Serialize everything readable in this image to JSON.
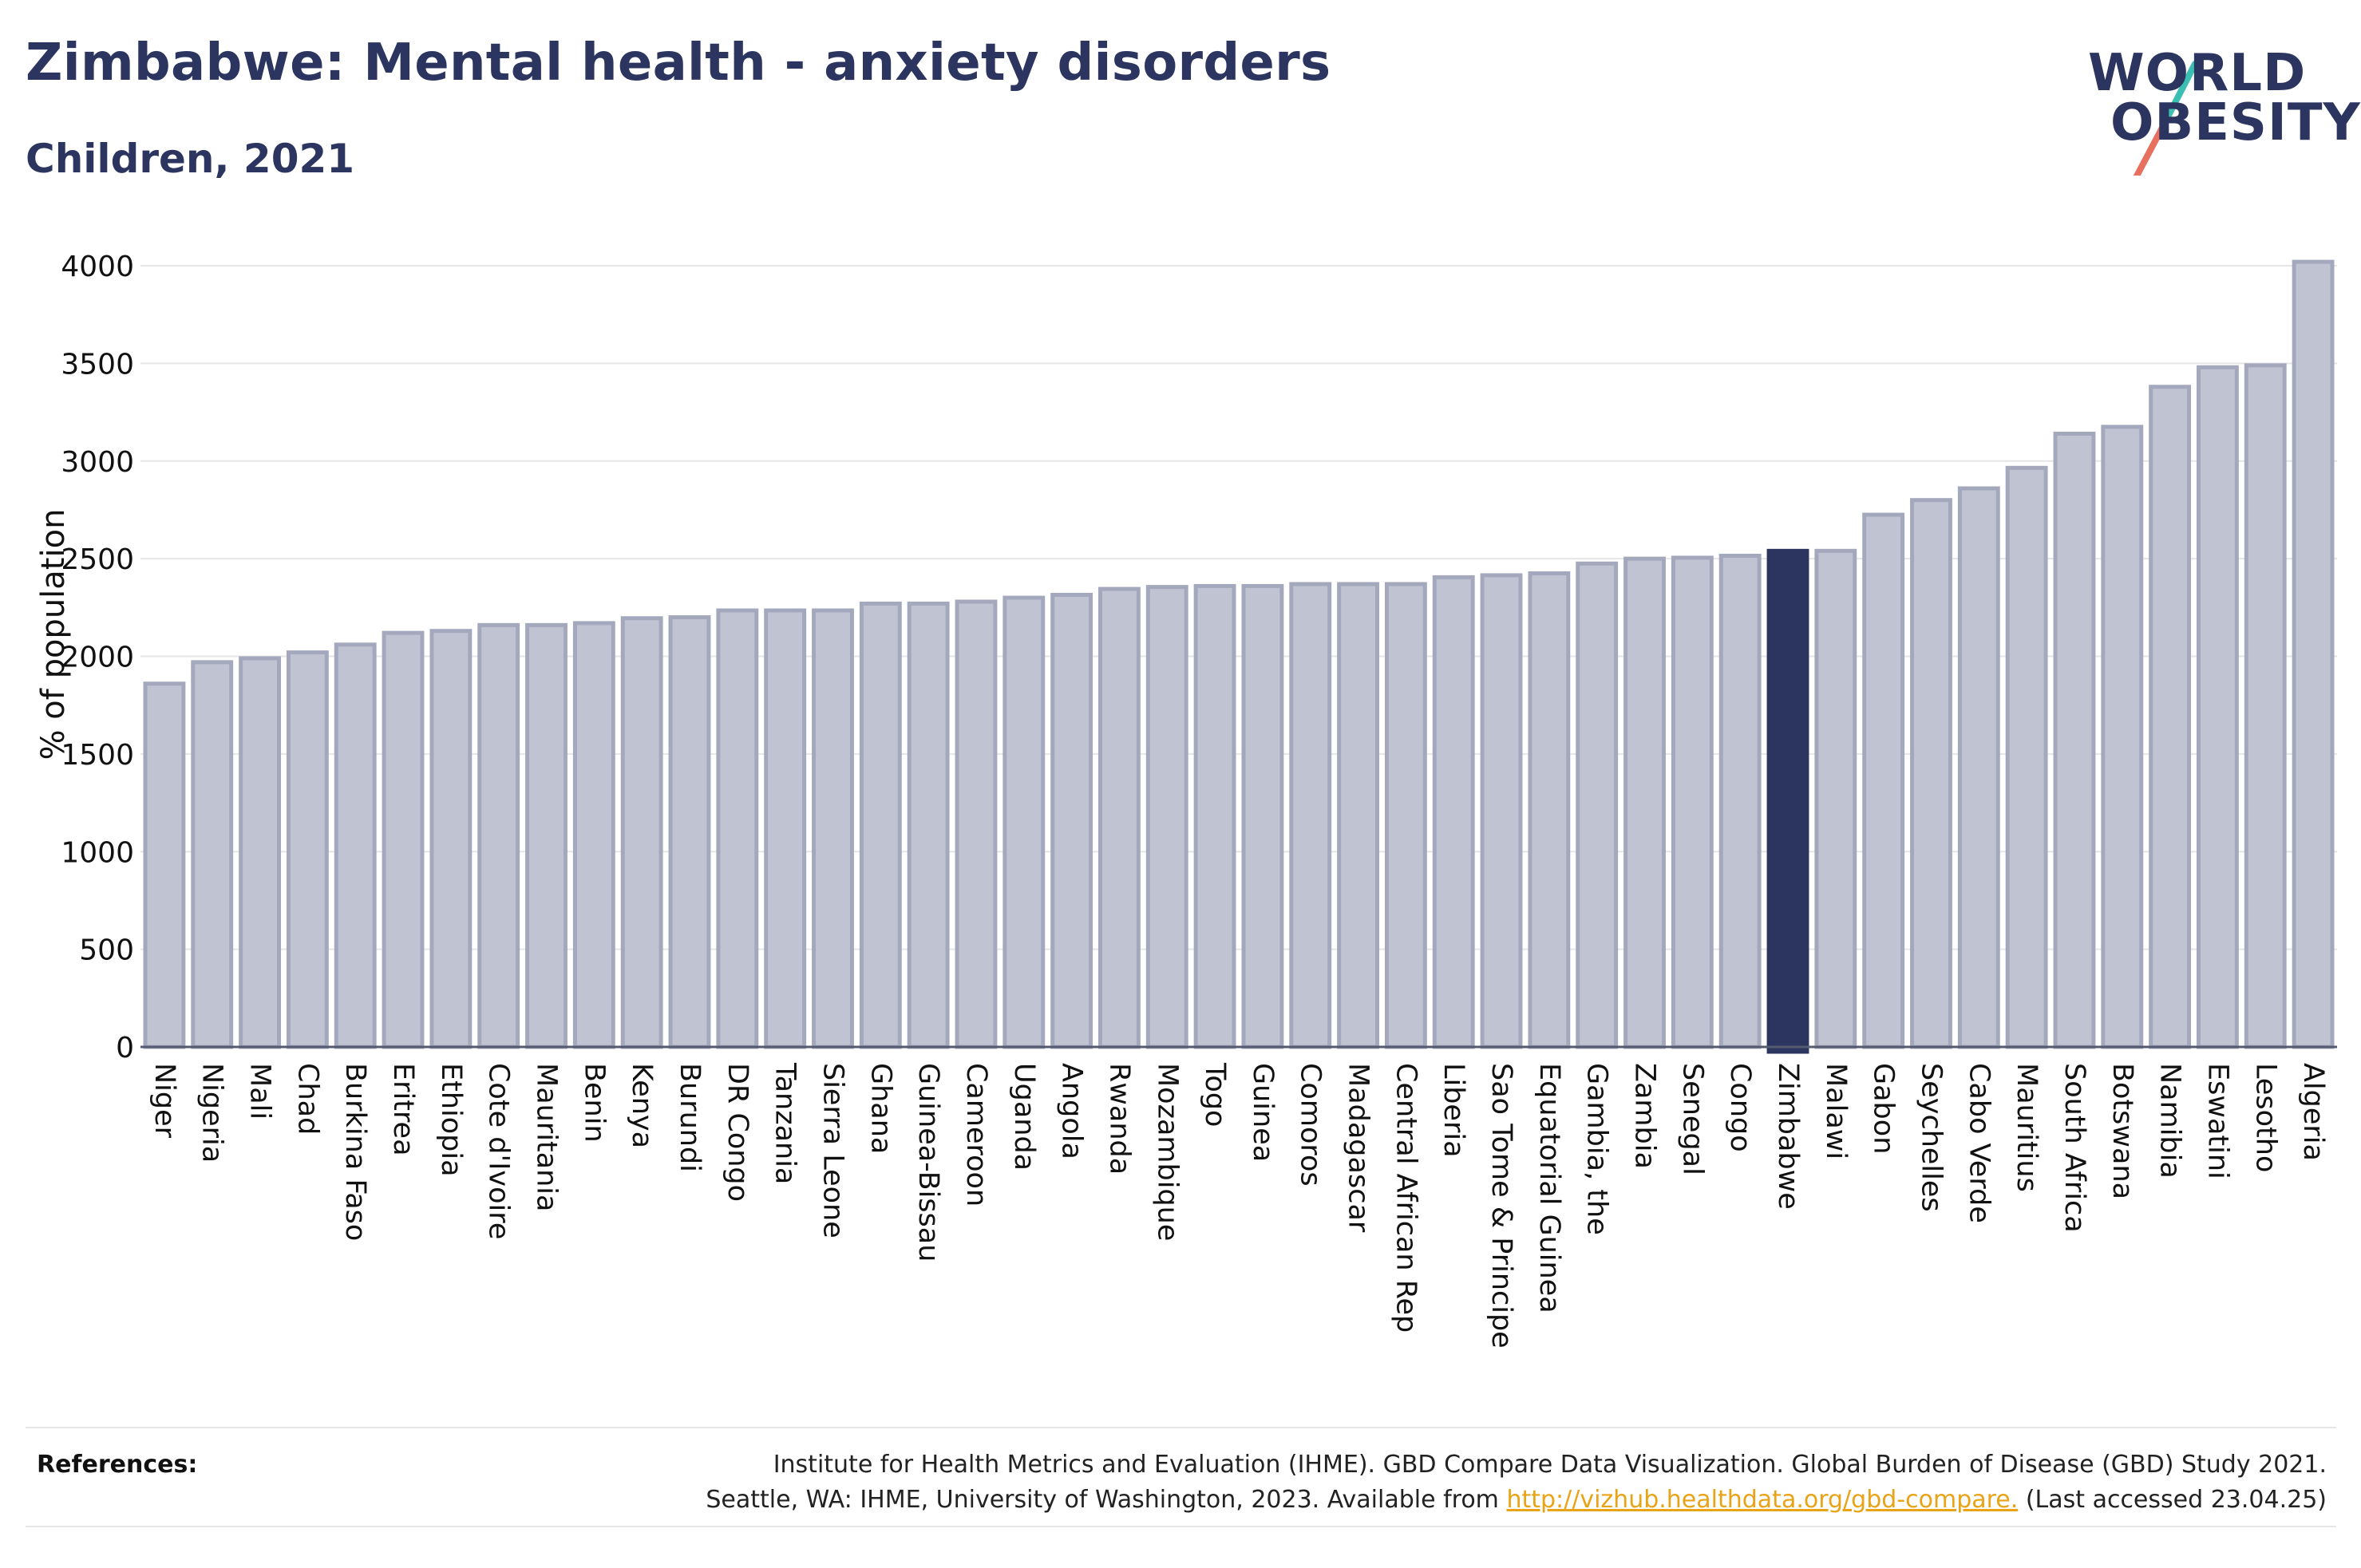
{
  "header": {
    "title": "Zimbabwe: Mental health - anxiety disorders",
    "subtitle": "Children, 2021"
  },
  "logo": {
    "line1": "WORLD",
    "line2": "OBESITY"
  },
  "references": {
    "label": "References:",
    "line1": "Institute for Health Metrics and Evaluation (IHME). GBD Compare Data Visualization. Global Burden of Disease (GBD) Study 2021.",
    "line2_prefix": "Seattle, WA: IHME, University of Washington, 2023. Available from ",
    "link": "http://vizhub.healthdata.org/gbd-compare.",
    "line2_suffix": " (Last accessed 23.04.25)"
  },
  "colors": {
    "bar_fill": "#c0c4d2",
    "bar_stroke": "#a3a8bd",
    "highlight": "#2b3560",
    "gridline": "#e6e6e6",
    "title": "#2b3560",
    "link": "#e8a317"
  },
  "chart_data": {
    "type": "bar",
    "title": "Zimbabwe: Mental health - anxiety disorders",
    "subtitle": "Children, 2021",
    "xlabel": "",
    "ylabel": "% of population",
    "ylim": [
      0,
      4000
    ],
    "yticks": [
      0,
      500,
      1000,
      1500,
      2000,
      2500,
      3000,
      3500,
      4000
    ],
    "grid": true,
    "highlight": "Zimbabwe",
    "categories": [
      "Niger",
      "Nigeria",
      "Mali",
      "Chad",
      "Burkina Faso",
      "Eritrea",
      "Ethiopia",
      "Cote d'Ivoire",
      "Mauritania",
      "Benin",
      "Kenya",
      "Burundi",
      "DR Congo",
      "Tanzania",
      "Sierra Leone",
      "Ghana",
      "Guinea-Bissau",
      "Cameroon",
      "Uganda",
      "Angola",
      "Rwanda",
      "Mozambique",
      "Togo",
      "Guinea",
      "Comoros",
      "Madagascar",
      "Central African Rep",
      "Liberia",
      "Sao Tome & Principe",
      "Equatorial Guinea",
      "Gambia, the",
      "Zambia",
      "Senegal",
      "Congo",
      "Zimbabwe",
      "Malawi",
      "Gabon",
      "Seychelles",
      "Cabo Verde",
      "Mauritius",
      "South Africa",
      "Botswana",
      "Namibia",
      "Eswatini",
      "Lesotho",
      "Algeria"
    ],
    "values": [
      1860,
      1970,
      1990,
      2020,
      2060,
      2120,
      2130,
      2160,
      2160,
      2170,
      2195,
      2200,
      2235,
      2235,
      2235,
      2270,
      2270,
      2280,
      2300,
      2315,
      2345,
      2355,
      2360,
      2360,
      2370,
      2370,
      2370,
      2405,
      2415,
      2425,
      2475,
      2500,
      2505,
      2515,
      2540,
      2540,
      2725,
      2800,
      2860,
      2965,
      3140,
      3175,
      3380,
      3480,
      3490,
      4020
    ]
  }
}
